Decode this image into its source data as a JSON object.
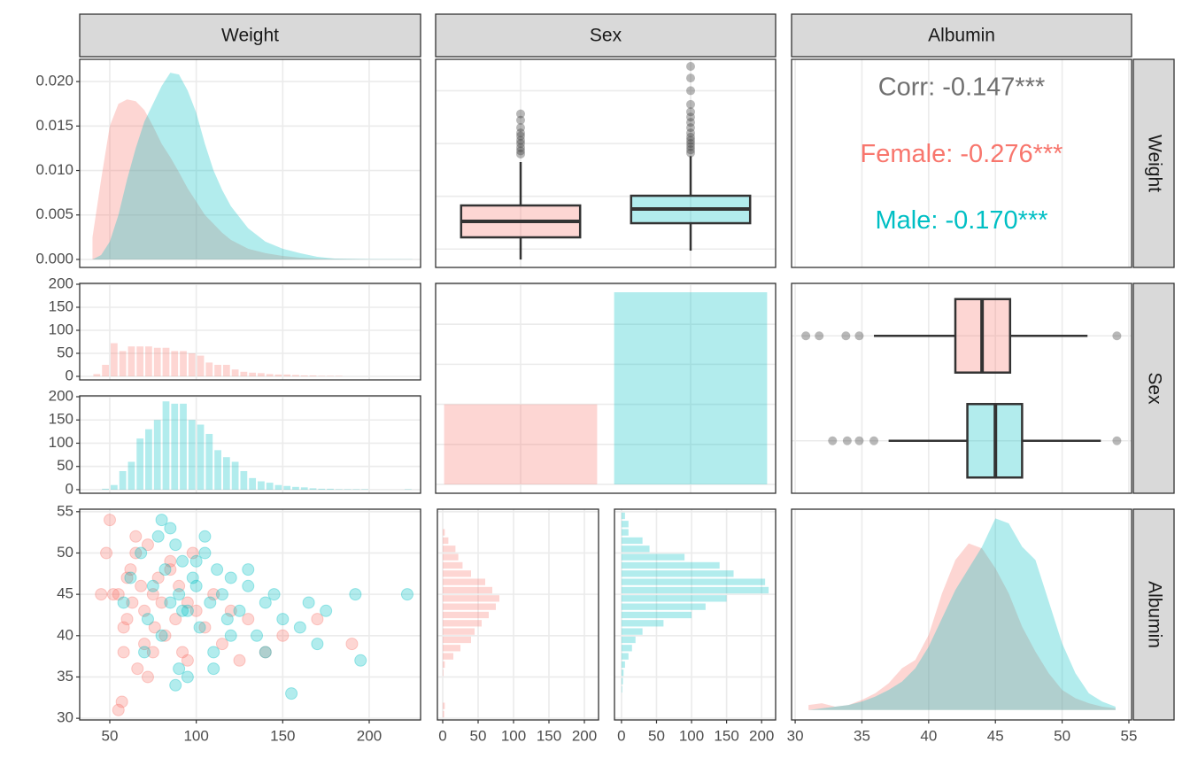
{
  "facets": {
    "columns": [
      "Weight",
      "Sex",
      "Albumin"
    ],
    "rows": [
      "Weight",
      "Sex",
      "Albumin"
    ]
  },
  "chart_data": [
    {
      "type": "density",
      "x": [
        40,
        45,
        50,
        55,
        60,
        65,
        70,
        75,
        80,
        85,
        90,
        95,
        100,
        105,
        110,
        115,
        120,
        130,
        140,
        150,
        160,
        170,
        180,
        200,
        225
      ],
      "series": [
        {
          "color": "#F8766D",
          "values": [
            0.0025,
            0.009,
            0.015,
            0.0175,
            0.018,
            0.0178,
            0.0168,
            0.015,
            0.013,
            0.0115,
            0.0098,
            0.008,
            0.0065,
            0.005,
            0.004,
            0.003,
            0.0022,
            0.0012,
            0.0007,
            0.0004,
            0.0002,
            0.0001,
            5e-05,
            0,
            0
          ]
        },
        {
          "color": "#00BFC4",
          "values": [
            0,
            0.0005,
            0.002,
            0.005,
            0.009,
            0.0125,
            0.0155,
            0.0175,
            0.0195,
            0.021,
            0.0208,
            0.019,
            0.0165,
            0.013,
            0.01,
            0.0078,
            0.006,
            0.0035,
            0.002,
            0.0012,
            0.0007,
            0.0003,
            0.0001,
            3e-05,
            2e-05
          ]
        }
      ],
      "xlim": [
        32.6,
        229.7
      ],
      "xticks": [
        50,
        100,
        150,
        200
      ],
      "ylim": [
        -0.0009,
        0.0225
      ],
      "yticks": [
        {
          "value": 0,
          "label": "0.000"
        },
        {
          "value": 0.005,
          "label": "0.005"
        },
        {
          "value": 0.01,
          "label": "0.010"
        },
        {
          "value": 0.015,
          "label": "0.015"
        },
        {
          "value": 0.02,
          "label": "0.020"
        }
      ]
    },
    {
      "type": "boxplot",
      "orientation": "vertical",
      "ylim": [
        32.6,
        229.7
      ],
      "yticks": [
        50,
        100,
        150,
        200
      ],
      "boxes": [
        {
          "color": "#F8766D",
          "whisker_low": 40.1,
          "q1": 61.1,
          "median": 76.2,
          "q3": 91.3,
          "whisker_high": 132.4,
          "outliers": [
            140,
            143,
            146,
            150,
            153,
            157,
            160,
            165,
            172,
            178
          ]
        },
        {
          "color": "#00BFC4",
          "whisker_low": 48.5,
          "q1": 74.5,
          "median": 88,
          "q3": 100.5,
          "whisker_high": 138,
          "outliers": [
            141,
            144,
            147,
            150,
            153,
            156,
            160,
            165,
            170,
            175,
            180,
            187,
            200,
            212,
            223
          ]
        }
      ]
    },
    {
      "type": "correlation",
      "xlim": [
        29.73,
        55.2
      ],
      "xticks": [
        30,
        35,
        40,
        45,
        50,
        55
      ],
      "texts": [
        {
          "text": "Corr: -0.147***",
          "color": "#707070"
        },
        {
          "text": "Female: -0.276***",
          "color": "#F8766D"
        },
        {
          "text": "Male: -0.170***",
          "color": "#00BFC4"
        }
      ]
    },
    {
      "type": "histogram",
      "orientation": "vertical",
      "bins": [
        40,
        45,
        50,
        55,
        60,
        65,
        70,
        75,
        80,
        85,
        90,
        95,
        100,
        105,
        110,
        115,
        120,
        125,
        130,
        135,
        140,
        145,
        150,
        155,
        160,
        165,
        170,
        175,
        180,
        185,
        190,
        195,
        200,
        205,
        210,
        215,
        220,
        225
      ],
      "xlim": [
        32.6,
        229.7
      ],
      "xticks": [
        50,
        100,
        150,
        200
      ],
      "facets": [
        {
          "color": "#F8766D",
          "ylim": [
            -7.7,
            201.9
          ],
          "yticks": [
            0,
            50,
            100,
            150,
            200
          ],
          "values": [
            5,
            25,
            72,
            55,
            65,
            65,
            65,
            62,
            62,
            55,
            55,
            50,
            45,
            30,
            25,
            25,
            15,
            10,
            8,
            7,
            5,
            4,
            4,
            3,
            2,
            2,
            1,
            1,
            1,
            0,
            0,
            0,
            0,
            0,
            0,
            0,
            0
          ]
        },
        {
          "color": "#00BFC4",
          "ylim": [
            -7.7,
            201.9
          ],
          "yticks": [
            0,
            50,
            100,
            150,
            200
          ],
          "values": [
            0,
            2,
            10,
            40,
            60,
            110,
            130,
            150,
            190,
            185,
            185,
            150,
            140,
            120,
            85,
            70,
            60,
            40,
            25,
            18,
            15,
            10,
            8,
            6,
            5,
            3,
            2,
            2,
            1,
            1,
            1,
            1,
            0,
            0,
            0,
            0,
            1
          ]
        }
      ]
    },
    {
      "type": "bar",
      "values": [
        1000,
        2400
      ],
      "colors": [
        "#F8766D",
        "#00BFC4"
      ],
      "ylim": [
        -111,
        2511
      ],
      "yticks": [
        0,
        500,
        1000,
        1500,
        2000,
        2500
      ]
    },
    {
      "type": "boxplot",
      "orientation": "horizontal",
      "xlim": [
        29.73,
        55.2
      ],
      "xticks": [
        30,
        35,
        40,
        45,
        50,
        55
      ],
      "boxes": [
        {
          "color": "#F8766D",
          "whisker_low": 35.9,
          "q1": 42,
          "median": 44,
          "q3": 46.1,
          "whisker_high": 51.9,
          "outliers": [
            30.8,
            31.8,
            33.8,
            34.8,
            54.1
          ]
        },
        {
          "color": "#00BFC4",
          "whisker_low": 37,
          "q1": 42.9,
          "median": 45,
          "q3": 47,
          "whisker_high": 52.9,
          "outliers": [
            32.8,
            33.9,
            34.8,
            35.9,
            54.1
          ]
        }
      ]
    },
    {
      "type": "scatter",
      "xlim": [
        32.6,
        229.7
      ],
      "xticks": [
        50,
        100,
        150,
        200
      ],
      "ylim": [
        29.8,
        55.3
      ],
      "yticks": [
        30,
        35,
        40,
        45,
        50,
        55
      ],
      "series": [
        {
          "color": "#F8766D",
          "x": [
            50,
            52,
            55,
            57,
            58,
            60,
            62,
            63,
            65,
            66,
            68,
            70,
            70,
            72,
            75,
            76,
            78,
            80,
            82,
            85,
            88,
            90,
            92,
            95,
            98,
            100,
            105,
            110,
            115,
            120,
            125,
            130,
            140,
            150,
            170,
            190,
            45,
            48,
            60,
            75,
            85,
            95,
            65,
            72,
            55,
            58
          ],
          "y": [
            54,
            45,
            31,
            32,
            38,
            42,
            48,
            44,
            50,
            36,
            46,
            43,
            39,
            51,
            45,
            41,
            47,
            44,
            40,
            48,
            42,
            46,
            38,
            44,
            50,
            43,
            41,
            45,
            39,
            43,
            37,
            42,
            38,
            40,
            42,
            39,
            45,
            50,
            47,
            38,
            49,
            37,
            52,
            35,
            45,
            41
          ]
        },
        {
          "color": "#00BFC4",
          "x": [
            222,
            192,
            195,
            155,
            80,
            58,
            62,
            68,
            72,
            75,
            78,
            80,
            82,
            85,
            88,
            90,
            90,
            92,
            95,
            98,
            100,
            102,
            105,
            108,
            110,
            112,
            115,
            118,
            120,
            125,
            130,
            135,
            140,
            145,
            150,
            160,
            165,
            170,
            175,
            85,
            95,
            105,
            70,
            100,
            120,
            88,
            110,
            130,
            140,
            92
          ],
          "y": [
            45,
            45,
            37,
            33,
            54,
            44,
            47,
            50,
            42,
            46,
            52,
            40,
            48,
            44,
            51,
            45,
            36,
            49,
            43,
            47,
            46,
            41,
            50,
            44,
            38,
            48,
            45,
            42,
            47,
            43,
            46,
            40,
            44,
            45,
            42,
            41,
            44,
            39,
            43,
            53,
            35,
            52,
            38,
            49,
            40,
            34,
            36,
            48,
            38,
            43
          ]
        }
      ]
    },
    {
      "type": "histogram",
      "orientation": "horizontal",
      "bins": [
        30,
        31,
        32,
        33,
        34,
        35,
        36,
        37,
        38,
        39,
        40,
        41,
        42,
        43,
        44,
        45,
        46,
        47,
        48,
        49,
        50,
        51,
        52,
        53,
        54,
        55
      ],
      "ylim": [
        29.8,
        55.3
      ],
      "yticks": [
        30,
        35,
        40,
        45,
        50,
        55
      ],
      "facets": [
        {
          "color": "#F8766D",
          "xlim": [
            -7.5,
            220
          ],
          "xticks": [
            0,
            50,
            100,
            150,
            200
          ],
          "values": [
            2,
            3,
            0,
            0,
            0,
            1,
            3,
            15,
            25,
            40,
            45,
            55,
            65,
            75,
            80,
            70,
            60,
            40,
            28,
            22,
            18,
            8,
            3,
            0,
            0
          ]
        },
        {
          "color": "#00BFC4",
          "xlim": [
            -10,
            220
          ],
          "xticks": [
            0,
            50,
            100,
            150,
            200
          ],
          "values": [
            0,
            0,
            0,
            1,
            2,
            3,
            5,
            10,
            15,
            20,
            30,
            60,
            100,
            120,
            150,
            210,
            205,
            160,
            140,
            90,
            40,
            30,
            10,
            10,
            5
          ]
        }
      ]
    },
    {
      "type": "density",
      "x": [
        31,
        32,
        33,
        34,
        35,
        36,
        37,
        38,
        39,
        40,
        41,
        42,
        43,
        44,
        45,
        46,
        47,
        48,
        49,
        50,
        51,
        52,
        53,
        54
      ],
      "series": [
        {
          "color": "#F8766D",
          "values": [
            0.003,
            0.004,
            0.002,
            0.003,
            0.006,
            0.01,
            0.016,
            0.025,
            0.03,
            0.045,
            0.07,
            0.09,
            0.1,
            0.097,
            0.085,
            0.07,
            0.05,
            0.035,
            0.022,
            0.012,
            0.007,
            0.004,
            0.002,
            0.001
          ]
        },
        {
          "color": "#00BFC4",
          "values": [
            0,
            0.001,
            0.002,
            0.003,
            0.005,
            0.008,
            0.012,
            0.017,
            0.025,
            0.038,
            0.055,
            0.072,
            0.085,
            0.098,
            0.115,
            0.112,
            0.098,
            0.09,
            0.065,
            0.04,
            0.022,
            0.01,
            0.005,
            0.002
          ]
        }
      ],
      "xlim": [
        29.73,
        55.2
      ],
      "xticks": [
        30,
        35,
        40,
        45,
        50,
        55
      ],
      "ylim": [
        -0.006,
        0.1205
      ]
    }
  ]
}
